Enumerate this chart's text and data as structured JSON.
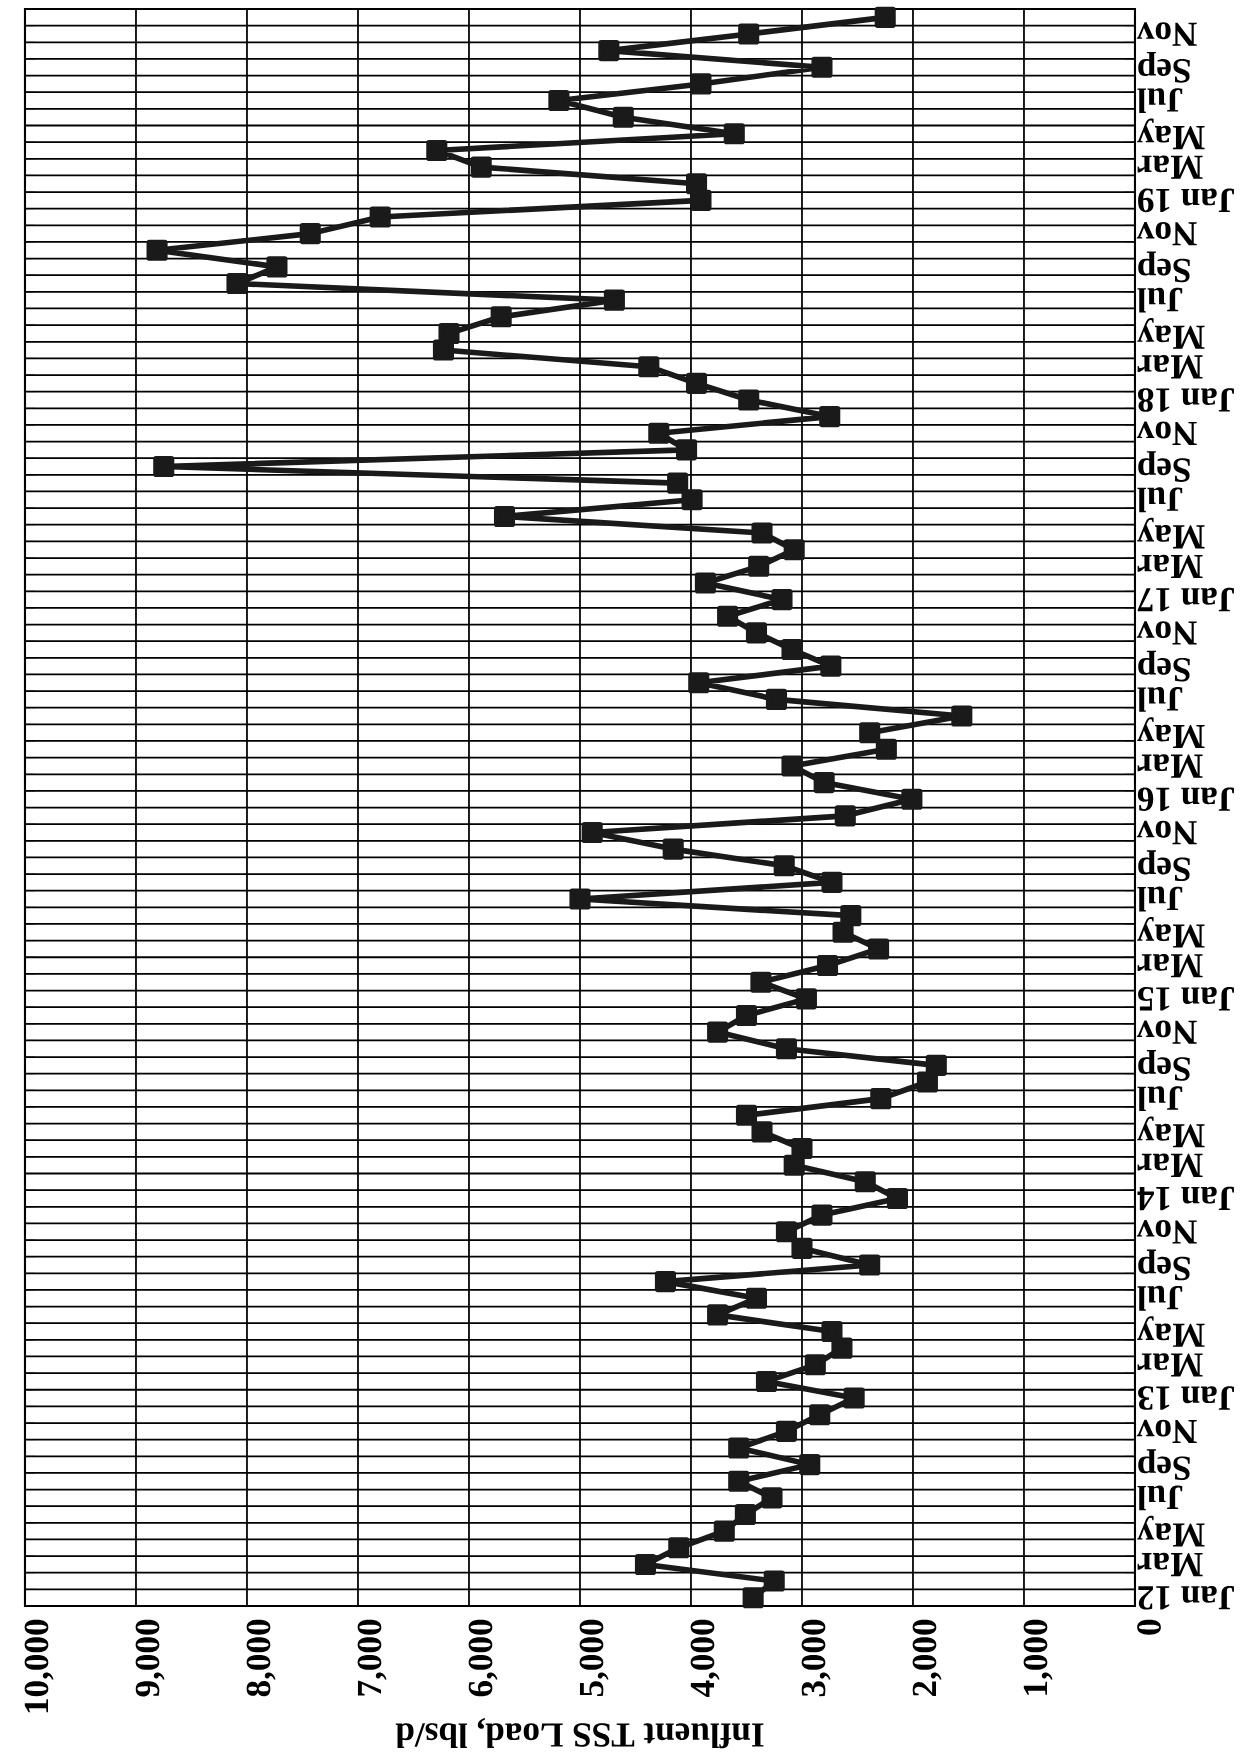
{
  "chart_data": {
    "type": "line",
    "orientation": "horizontal",
    "xlabel": "Influent TSS Load, lbs/d",
    "categories": [
      null,
      "Nov",
      null,
      "Sep",
      null,
      "Jul",
      null,
      "May",
      null,
      "Mar",
      null,
      "Jan 19",
      null,
      "Nov",
      null,
      "Sep",
      null,
      "Jul",
      null,
      "May",
      null,
      "Mar",
      null,
      "Jan 18",
      null,
      "Nov",
      null,
      "Sep",
      null,
      "Jul",
      null,
      "May",
      null,
      "Mar",
      null,
      "Jan 17",
      null,
      "Nov",
      null,
      "Sep",
      null,
      "Jul",
      null,
      "May",
      null,
      "Mar",
      null,
      "Jan 16",
      null,
      "Nov",
      null,
      "Sep",
      null,
      "Jul",
      null,
      "May",
      null,
      "Mar",
      null,
      "Jan 15",
      null,
      "Nov",
      null,
      "Sep",
      null,
      "Jul",
      null,
      "May",
      null,
      "Mar",
      null,
      "Jan 14",
      null,
      "Nov",
      null,
      "Sep",
      null,
      "Jul",
      null,
      "May",
      null,
      "Mar",
      null,
      "Jan 13",
      null,
      "Nov",
      null,
      "Sep",
      null,
      "Jul",
      null,
      "May",
      null,
      "Mar",
      null,
      "Jan 12"
    ],
    "series": [
      {
        "color": "#1a1a1a",
        "values": [
          2250,
          3480,
          4740,
          2820,
          3910,
          5190,
          4610,
          3610,
          6290,
          5890,
          3950,
          3910,
          6800,
          7430,
          8810,
          7730,
          8090,
          4690,
          5710,
          6180,
          6230,
          4380,
          3950,
          3480,
          2750,
          4290,
          4040,
          8750,
          4120,
          3990,
          5680,
          3360,
          3070,
          3390,
          3870,
          3180,
          3670,
          3410,
          3090,
          2740,
          3930,
          3230,
          1560,
          2390,
          2240,
          3090,
          2800,
          2010,
          2610,
          4890,
          4160,
          3160,
          2730,
          5000,
          2560,
          2630,
          2310,
          2770,
          3370,
          2960,
          3500,
          3760,
          3140,
          1790,
          1870,
          2290,
          3500,
          3360,
          3000,
          3070,
          2430,
          2140,
          2820,
          3140,
          3000,
          2390,
          4230,
          3410,
          3760,
          2730,
          2640,
          2880,
          3320,
          2530,
          2840,
          3140,
          3570,
          2930,
          3570,
          3270,
          3510,
          3700,
          4110,
          4410,
          3250,
          3440
        ]
      }
    ],
    "xlim": [
      10000,
      0
    ],
    "xticks": [
      {
        "value": 10000,
        "label": "10,000"
      },
      {
        "value": 9000,
        "label": "9,000"
      },
      {
        "value": 8000,
        "label": "8,000"
      },
      {
        "value": 7000,
        "label": "7,000"
      },
      {
        "value": 6000,
        "label": "6,000"
      },
      {
        "value": 5000,
        "label": "5,000"
      },
      {
        "value": 4000,
        "label": "4,000"
      },
      {
        "value": 3000,
        "label": "3,000"
      },
      {
        "value": 2000,
        "label": "2,000"
      },
      {
        "value": 1000,
        "label": "1,000"
      },
      0
    ],
    "grid": true,
    "marker": "square",
    "line_style": "solid"
  }
}
